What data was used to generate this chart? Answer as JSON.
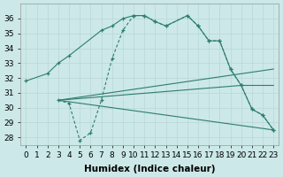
{
  "color": "#2e7d6e",
  "bg_color": "#cce8e8",
  "grid_color": "#b8d8d8",
  "xlabel": "Humidex (Indice chaleur)",
  "xlim": [
    -0.5,
    23.5
  ],
  "ylim": [
    27.5,
    37.0
  ],
  "yticks": [
    28,
    29,
    30,
    31,
    32,
    33,
    34,
    35,
    36
  ],
  "xticks": [
    0,
    1,
    2,
    3,
    4,
    5,
    6,
    7,
    8,
    9,
    10,
    11,
    12,
    13,
    14,
    15,
    16,
    17,
    18,
    19,
    20,
    21,
    22,
    23
  ],
  "xtick_labels": [
    "0",
    "1",
    "2",
    "3",
    "4",
    "5",
    "6",
    "7",
    "8",
    "9",
    "10",
    "11",
    "12",
    "13",
    "14",
    "15",
    "16",
    "17",
    "18",
    "19",
    "20",
    "21",
    "22",
    "23"
  ],
  "font_size": 6.5,
  "line1_x": [
    0,
    2,
    3,
    4,
    7,
    8,
    9,
    10,
    11,
    12,
    13,
    15,
    16,
    17,
    18,
    19,
    20,
    21,
    22,
    23
  ],
  "line1_y": [
    31.8,
    32.3,
    33.0,
    33.5,
    35.2,
    35.5,
    36.0,
    36.2,
    36.2,
    35.8,
    35.5,
    36.2,
    35.5,
    34.5,
    34.5,
    32.6,
    31.5,
    29.9,
    29.5,
    28.5
  ],
  "line2_x": [
    3,
    4,
    5,
    6,
    7,
    8,
    9,
    10,
    11,
    12,
    13,
    15,
    16,
    17,
    18,
    19,
    20,
    21,
    22,
    23
  ],
  "line2_y": [
    30.5,
    30.3,
    27.8,
    28.3,
    30.5,
    33.3,
    35.2,
    36.2,
    36.2,
    35.8,
    35.5,
    36.2,
    35.5,
    34.5,
    34.5,
    32.6,
    31.5,
    29.9,
    29.5,
    28.5
  ],
  "line3_x": [
    3,
    23
  ],
  "line3_y": [
    30.5,
    32.6
  ],
  "line4_x": [
    3,
    20,
    23
  ],
  "line4_y": [
    30.5,
    31.5,
    31.5
  ],
  "line5_x": [
    3,
    23
  ],
  "line5_y": [
    30.5,
    28.5
  ]
}
